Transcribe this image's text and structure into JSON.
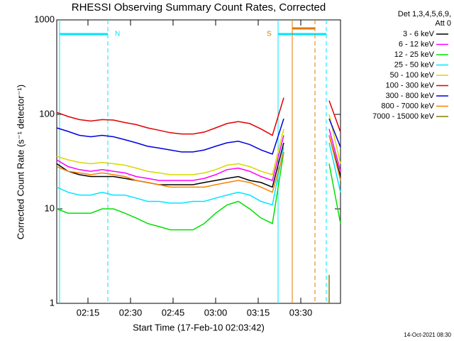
{
  "chart_data": {
    "type": "line",
    "title": "RHESSI Observing Summary Count Rates, Corrected",
    "xlabel": "Start Time (17-Feb-10 02:03:42)",
    "ylabel": "Corrected Count Rate (s⁻¹ detector⁻¹)",
    "legend_header": [
      "Det 1,3,4,5,6,9,",
      "Att 0"
    ],
    "timestamp": "14-Oct-2021 08:30",
    "log_y": true,
    "xlim": [
      "02:04",
      "03:44"
    ],
    "xticks": [
      "02:15",
      "02:30",
      "02:45",
      "03:00",
      "03:15",
      "03:30"
    ],
    "ylim": [
      1,
      1000
    ],
    "yticks": [
      1,
      10,
      100,
      1000
    ],
    "flags": [
      {
        "label": "N",
        "start": "02:05",
        "end": "02:22",
        "color": "#00e5ff"
      },
      {
        "label": "S",
        "start": "03:22",
        "end": "03:39",
        "color": "#00e5ff"
      },
      {
        "start": "03:27",
        "end": "03:35",
        "color": "#e07800"
      }
    ],
    "x": [
      "02:04",
      "02:08",
      "02:12",
      "02:16",
      "02:20",
      "02:24",
      "02:28",
      "02:32",
      "02:36",
      "02:40",
      "02:44",
      "02:48",
      "02:52",
      "02:56",
      "03:00",
      "03:04",
      "03:08",
      "03:12",
      "03:16",
      "03:20",
      "03:24",
      "03:28",
      "03:32",
      "03:36",
      "03:40",
      "03:44"
    ],
    "series": [
      {
        "name": "3 - 6 keV",
        "color": "#000000",
        "values": [
          30,
          25,
          23,
          22,
          22,
          22,
          21,
          20,
          19,
          18,
          18,
          18,
          18,
          19,
          20,
          21,
          22,
          20,
          19,
          17,
          50,
          null,
          null,
          null,
          60,
          22
        ]
      },
      {
        "name": "6 - 12 keV",
        "color": "#ff00ff",
        "values": [
          33,
          28,
          26,
          25,
          26,
          25,
          24,
          22,
          21,
          20,
          20,
          20,
          20,
          21,
          23,
          26,
          27,
          25,
          22,
          20,
          60,
          null,
          null,
          null,
          70,
          25
        ]
      },
      {
        "name": "12 - 25 keV",
        "color": "#00e000",
        "values": [
          10,
          9,
          9,
          9,
          10,
          10,
          9,
          8,
          7,
          6.5,
          6,
          6,
          6,
          7,
          9,
          11,
          12,
          10,
          8,
          7,
          40,
          null,
          null,
          null,
          30,
          7
        ]
      },
      {
        "name": "25 - 50 keV",
        "color": "#00e5ff",
        "values": [
          17,
          15,
          14,
          14,
          15,
          14,
          14,
          13,
          12,
          12,
          11.5,
          11.5,
          12,
          12,
          13,
          14,
          15,
          14,
          12,
          11,
          45,
          null,
          null,
          null,
          50,
          15
        ]
      },
      {
        "name": "50 - 100 keV",
        "color": "#d8d800",
        "values": [
          36,
          33,
          31,
          30,
          31,
          30,
          29,
          27,
          25,
          24,
          23,
          23,
          23,
          24,
          26,
          29,
          30,
          28,
          25,
          23,
          70,
          null,
          null,
          null,
          100,
          30
        ]
      },
      {
        "name": "100 - 300 keV",
        "color": "#e00000",
        "values": [
          105,
          95,
          88,
          85,
          88,
          87,
          82,
          78,
          72,
          68,
          64,
          62,
          62,
          65,
          72,
          80,
          84,
          80,
          70,
          60,
          150,
          null,
          null,
          null,
          140,
          65
        ]
      },
      {
        "name": "300 - 800 keV",
        "color": "#0000e0",
        "values": [
          72,
          66,
          60,
          58,
          60,
          58,
          54,
          50,
          46,
          44,
          42,
          40,
          40,
          42,
          46,
          50,
          52,
          48,
          42,
          38,
          90,
          null,
          null,
          null,
          90,
          45
        ]
      },
      {
        "name": "800 - 7000 keV",
        "color": "#ff8000",
        "values": [
          28,
          25,
          24,
          23,
          24,
          23,
          22,
          20,
          19,
          18,
          17,
          17,
          17,
          17,
          18,
          19,
          20,
          19,
          17,
          15,
          40,
          null,
          null,
          null,
          60,
          20
        ]
      },
      {
        "name": "7000 - 15000 keV",
        "color": "#808000",
        "values": [
          null,
          null,
          null,
          null,
          null,
          null,
          null,
          null,
          null,
          null,
          null,
          null,
          null,
          null,
          null,
          null,
          null,
          null,
          null,
          null,
          null,
          null,
          null,
          null,
          2,
          null
        ]
      }
    ]
  }
}
